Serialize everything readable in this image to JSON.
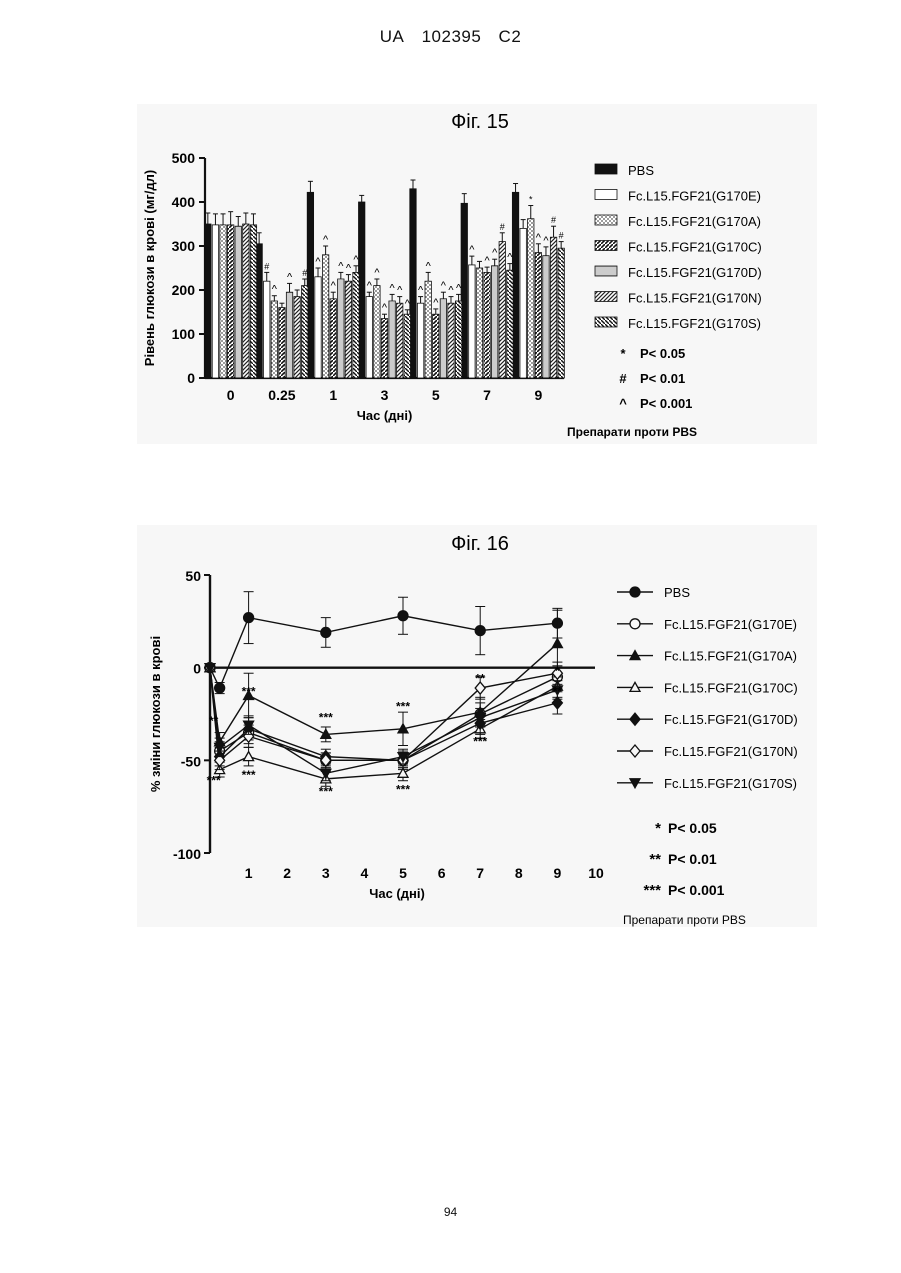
{
  "header": {
    "doc": "UA",
    "number": "102395",
    "kind": "C2"
  },
  "page_number": "94",
  "chart_data": [
    {
      "type": "bar",
      "title": "Фіг. 15",
      "ylabel": "Рівень глюкози в крові (мг/дл)",
      "xlabel": "Час (дні)",
      "ylim": [
        0,
        500
      ],
      "yticks": [
        "0",
        "100",
        "200",
        "300",
        "400",
        "500"
      ],
      "categories": [
        "0",
        "0.25",
        "1",
        "3",
        "5",
        "7",
        "9"
      ],
      "series": [
        {
          "name": "PBS",
          "pattern": "solid",
          "values": [
            350,
            305,
            422,
            400,
            430,
            397,
            422
          ],
          "errors": [
            25,
            25,
            25,
            15,
            20,
            22,
            20
          ]
        },
        {
          "name": "Fc.L15.FGF21(G170E)",
          "pattern": "white",
          "values": [
            348,
            220,
            230,
            185,
            170,
            257,
            340
          ],
          "errors": [
            25,
            20,
            20,
            10,
            15,
            20,
            20
          ]
        },
        {
          "name": "Fc.L15.FGF21(G170A)",
          "pattern": "dots",
          "values": [
            348,
            175,
            280,
            210,
            220,
            250,
            362
          ],
          "errors": [
            25,
            12,
            20,
            15,
            20,
            15,
            30
          ]
        },
        {
          "name": "Fc.L15.FGF21(G170C)",
          "pattern": "diag",
          "values": [
            348,
            160,
            180,
            135,
            145,
            240,
            285
          ],
          "errors": [
            30,
            10,
            15,
            10,
            12,
            12,
            20
          ]
        },
        {
          "name": "Fc.L15.FGF21(G170D)",
          "pattern": "fine",
          "values": [
            345,
            195,
            225,
            175,
            180,
            255,
            278
          ],
          "errors": [
            22,
            20,
            15,
            15,
            15,
            15,
            20
          ]
        },
        {
          "name": "Fc.L15.FGF21(G170N)",
          "pattern": "dense",
          "values": [
            350,
            185,
            220,
            170,
            170,
            310,
            320
          ],
          "errors": [
            25,
            15,
            15,
            15,
            15,
            20,
            25
          ]
        },
        {
          "name": "Fc.L15.FGF21(G170S)",
          "pattern": "back",
          "values": [
            348,
            210,
            240,
            145,
            175,
            245,
            295
          ],
          "errors": [
            25,
            15,
            15,
            10,
            15,
            15,
            15
          ]
        }
      ],
      "significance": [
        {
          "symbol": "#",
          "category": "0.25",
          "series": 1
        },
        {
          "symbol": "^",
          "category": "0.25",
          "series": 2
        },
        {
          "symbol": "^",
          "category": "0.25",
          "series": 4
        },
        {
          "symbol": "#",
          "category": "0.25",
          "series": 6
        },
        {
          "symbol": "^",
          "category": "1",
          "series": 1
        },
        {
          "symbol": "^",
          "category": "1",
          "series": 2
        },
        {
          "symbol": "^",
          "category": "1",
          "series": 3
        },
        {
          "symbol": "^",
          "category": "1",
          "series": 4
        },
        {
          "symbol": "^",
          "category": "1",
          "series": 5
        },
        {
          "symbol": "^",
          "category": "1",
          "series": 6
        },
        {
          "symbol": "^",
          "category": "3",
          "series": 1
        },
        {
          "symbol": "^",
          "category": "3",
          "series": 2
        },
        {
          "symbol": "^",
          "category": "3",
          "series": 3
        },
        {
          "symbol": "^",
          "category": "3",
          "series": 4
        },
        {
          "symbol": "^",
          "category": "3",
          "series": 5
        },
        {
          "symbol": "^",
          "category": "3",
          "series": 6
        },
        {
          "symbol": "^",
          "category": "5",
          "series": 1
        },
        {
          "symbol": "^",
          "category": "5",
          "series": 2
        },
        {
          "symbol": "^",
          "category": "5",
          "series": 3
        },
        {
          "symbol": "^",
          "category": "5",
          "series": 4
        },
        {
          "symbol": "^",
          "category": "5",
          "series": 5
        },
        {
          "symbol": "^",
          "category": "5",
          "series": 6
        },
        {
          "symbol": "^",
          "category": "7",
          "series": 1
        },
        {
          "symbol": "^",
          "category": "7",
          "series": 3
        },
        {
          "symbol": "^",
          "category": "7",
          "series": 4
        },
        {
          "symbol": "#",
          "category": "7",
          "series": 5
        },
        {
          "symbol": "^",
          "category": "7",
          "series": 6
        },
        {
          "symbol": "*",
          "category": "9",
          "series": 2
        },
        {
          "symbol": "^",
          "category": "9",
          "series": 3
        },
        {
          "symbol": "^",
          "category": "9",
          "series": 4
        },
        {
          "symbol": "#",
          "category": "9",
          "series": 5
        },
        {
          "symbol": "#",
          "category": "9",
          "series": 6
        }
      ],
      "significance_legend": [
        {
          "symbol": "*",
          "text": "P< 0.05"
        },
        {
          "symbol": "#",
          "text": "P< 0.01"
        },
        {
          "symbol": "^",
          "text": "P< 0.001"
        }
      ],
      "note": "Препарати проти PBS",
      "legend_placement": "right"
    },
    {
      "type": "line",
      "title": "Фіг. 16",
      "ylabel": "% зміни глюкози в крові",
      "xlabel": "Час (дні)",
      "xlim": [
        0,
        10
      ],
      "ylim": [
        -100,
        50
      ],
      "xticks": [
        "1",
        "2",
        "3",
        "4",
        "5",
        "6",
        "7",
        "8",
        "9",
        "10"
      ],
      "yticks": [
        "50",
        "0",
        "-50",
        "-100"
      ],
      "x": [
        0,
        0.25,
        1,
        3,
        5,
        7,
        9
      ],
      "series": [
        {
          "name": "PBS",
          "marker": "circle-filled",
          "values": [
            0,
            -11,
            27,
            19,
            28,
            20,
            24
          ],
          "errors": [
            0,
            3,
            14,
            8,
            10,
            13,
            8
          ]
        },
        {
          "name": "Fc.L15.FGF21(G170E)",
          "marker": "circle-open",
          "values": [
            0,
            -45,
            -35,
            -50,
            -50,
            -25,
            -5
          ],
          "errors": [
            0,
            5,
            6,
            4,
            4,
            6,
            6
          ]
        },
        {
          "name": "Fc.L15.FGF21(G170A)",
          "marker": "triangle-filled",
          "values": [
            0,
            -40,
            -15,
            -36,
            -33,
            -24,
            13
          ],
          "errors": [
            0,
            5,
            12,
            4,
            9,
            8,
            18
          ]
        },
        {
          "name": "Fc.L15.FGF21(G170C)",
          "marker": "triangle-open",
          "values": [
            0,
            -55,
            -48,
            -60,
            -57,
            -33,
            -10
          ],
          "errors": [
            0,
            4,
            5,
            4,
            4,
            5,
            6
          ]
        },
        {
          "name": "Fc.L15.FGF21(G170D)",
          "marker": "diamond-filled",
          "values": [
            0,
            -48,
            -33,
            -48,
            -50,
            -30,
            -19
          ],
          "errors": [
            0,
            5,
            6,
            4,
            5,
            6,
            6
          ]
        },
        {
          "name": "Fc.L15.FGF21(G170N)",
          "marker": "diamond-open",
          "values": [
            0,
            -50,
            -37,
            -50,
            -50,
            -11,
            -3
          ],
          "errors": [
            0,
            5,
            6,
            4,
            4,
            6,
            6
          ]
        },
        {
          "name": "Fc.L15.FGF21(G170S)",
          "marker": "triangle-down-filled",
          "values": [
            0,
            -43,
            -31,
            -57,
            -48,
            -27,
            -12
          ],
          "errors": [
            0,
            5,
            5,
            4,
            4,
            5,
            5
          ]
        }
      ],
      "annotations": [
        {
          "text": "**",
          "x": 0.25,
          "y": -31
        },
        {
          "text": "***",
          "x": 0.25,
          "y": -63
        },
        {
          "text": "***",
          "x": 1,
          "y": -15
        },
        {
          "text": "***",
          "x": 1,
          "y": -60
        },
        {
          "text": "***",
          "x": 3,
          "y": -29
        },
        {
          "text": "***",
          "x": 3,
          "y": -69
        },
        {
          "text": "***",
          "x": 5,
          "y": -23
        },
        {
          "text": "***",
          "x": 5,
          "y": -68
        },
        {
          "text": "**",
          "x": 7,
          "y": -8
        },
        {
          "text": "***",
          "x": 7,
          "y": -42
        },
        {
          "text": "*",
          "x": 9,
          "y": -4
        },
        {
          "text": "**",
          "x": 9,
          "y": -15
        }
      ],
      "significance_legend": [
        {
          "symbol": "*",
          "text": "P< 0.05"
        },
        {
          "symbol": "**",
          "text": "P< 0.01"
        },
        {
          "symbol": "***",
          "text": "P< 0.001"
        }
      ],
      "note": "Препарати проти PBS",
      "legend_placement": "right"
    }
  ]
}
